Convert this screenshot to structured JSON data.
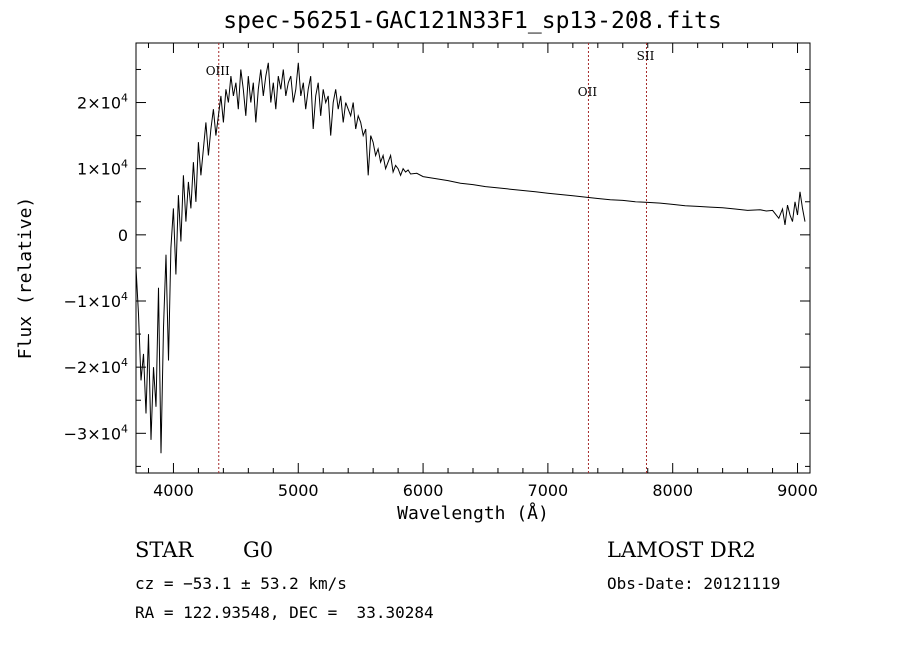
{
  "chart_data": {
    "type": "line",
    "title": "spec-56251-GAC121N33F1_sp13-208.fits",
    "xlabel": "Wavelength (Å)",
    "ylabel": "Flux (relative)",
    "xlim": [
      3700,
      9100
    ],
    "ylim": [
      -36000,
      29000
    ],
    "x_ticks": [
      4000,
      5000,
      6000,
      7000,
      8000,
      9000
    ],
    "x_tick_labels": [
      "4000",
      "5000",
      "6000",
      "7000",
      "8000",
      "9000"
    ],
    "y_ticks": [
      -30000,
      -20000,
      -10000,
      0,
      10000,
      20000
    ],
    "y_tick_labels": [
      {
        "mantissa": "−3×10",
        "exp": "4"
      },
      {
        "mantissa": "−2×10",
        "exp": "4"
      },
      {
        "mantissa": "−1×10",
        "exp": "4"
      },
      {
        "mantissa": "0",
        "exp": ""
      },
      {
        "mantissa": "1×10",
        "exp": "4"
      },
      {
        "mantissa": "2×10",
        "exp": "4"
      }
    ],
    "series": [
      {
        "x": [
          3700,
          3720,
          3740,
          3760,
          3780,
          3800,
          3820,
          3840,
          3860,
          3880,
          3900,
          3920,
          3940,
          3960,
          3980,
          4000,
          4020,
          4040,
          4060,
          4080,
          4100,
          4120,
          4140,
          4160,
          4180,
          4200,
          4220,
          4240,
          4260,
          4280,
          4300,
          4320,
          4340,
          4360,
          4380,
          4400,
          4420,
          4440,
          4460,
          4480,
          4500,
          4520,
          4540,
          4560,
          4580,
          4600,
          4620,
          4640,
          4660,
          4680,
          4700,
          4720,
          4740,
          4760,
          4780,
          4800,
          4820,
          4840,
          4860,
          4880,
          4900,
          4920,
          4940,
          4960,
          4980,
          5000,
          5020,
          5040,
          5060,
          5080,
          5100,
          5120,
          5140,
          5160,
          5180,
          5200,
          5220,
          5240,
          5260,
          5280,
          5300,
          5320,
          5340,
          5360,
          5380,
          5400,
          5420,
          5440,
          5460,
          5480,
          5500,
          5520,
          5540,
          5560,
          5580,
          5600,
          5620,
          5640,
          5660,
          5680,
          5700,
          5720,
          5740,
          5760,
          5780,
          5800,
          5820,
          5840,
          5860,
          5880,
          5900,
          5950,
          6000,
          6100,
          6200,
          6300,
          6400,
          6500,
          6600,
          6700,
          6800,
          6900,
          7000,
          7100,
          7200,
          7300,
          7400,
          7500,
          7600,
          7700,
          7800,
          7900,
          8000,
          8100,
          8200,
          8300,
          8400,
          8500,
          8600,
          8700,
          8750,
          8800,
          8850,
          8880,
          8900,
          8920,
          8940,
          8960,
          8980,
          9000,
          9020,
          9040,
          9060
        ],
        "y": [
          -5000,
          -12000,
          -22000,
          -18000,
          -27000,
          -15000,
          -31000,
          -20000,
          -26000,
          -8000,
          -33000,
          -14000,
          -3000,
          -19000,
          -2000,
          4000,
          -6000,
          6000,
          -1000,
          9000,
          2000,
          8000,
          4000,
          11000,
          5000,
          14000,
          9000,
          13000,
          17000,
          12000,
          16000,
          19000,
          15000,
          18000,
          21000,
          17000,
          22000,
          20000,
          24000,
          21000,
          23000,
          19000,
          25000,
          22000,
          18000,
          24000,
          20000,
          23000,
          17000,
          22000,
          25000,
          21000,
          24000,
          26000,
          20000,
          23000,
          19000,
          24000,
          22000,
          25000,
          21000,
          23000,
          24000,
          20000,
          22000,
          26000,
          21000,
          23000,
          19000,
          22000,
          24000,
          16000,
          21000,
          23000,
          18000,
          22000,
          20000,
          21000,
          15000,
          20000,
          22000,
          19000,
          21000,
          17000,
          20000,
          19000,
          18000,
          20000,
          16000,
          18000,
          17000,
          15000,
          16000,
          9000,
          15000,
          14000,
          12000,
          13000,
          11000,
          12000,
          10000,
          11000,
          12000,
          9500,
          10500,
          10000,
          9000,
          10000,
          9500,
          9800,
          9200,
          9300,
          8800,
          8500,
          8200,
          7800,
          7600,
          7300,
          7100,
          6900,
          6700,
          6500,
          6300,
          6100,
          5900,
          5700,
          5500,
          5300,
          5200,
          5000,
          4900,
          4800,
          4600,
          4400,
          4300,
          4200,
          4100,
          3900,
          3700,
          3800,
          3600,
          3700,
          2500,
          3900,
          1500,
          4500,
          3000,
          2000,
          5000,
          3000,
          6500,
          4000,
          2000
        ]
      }
    ],
    "emission_lines": [
      {
        "label": "OIII",
        "wavelength": 4363
      },
      {
        "label": "OII",
        "wavelength": 7325
      },
      {
        "label": "SII",
        "wavelength": 7790
      }
    ],
    "grid": false
  },
  "info": {
    "object_class": "STAR",
    "subclass": "G0",
    "survey": "LAMOST DR2",
    "cz": "cz = −53.1 ± 53.2 km/s",
    "obs_date": "Obs-Date: 20121119",
    "coords": "RA = 122.93548, DEC =  33.30284"
  },
  "colors": {
    "line": "#000000",
    "emission_line": "#a52a2a",
    "background": "#ffffff"
  }
}
